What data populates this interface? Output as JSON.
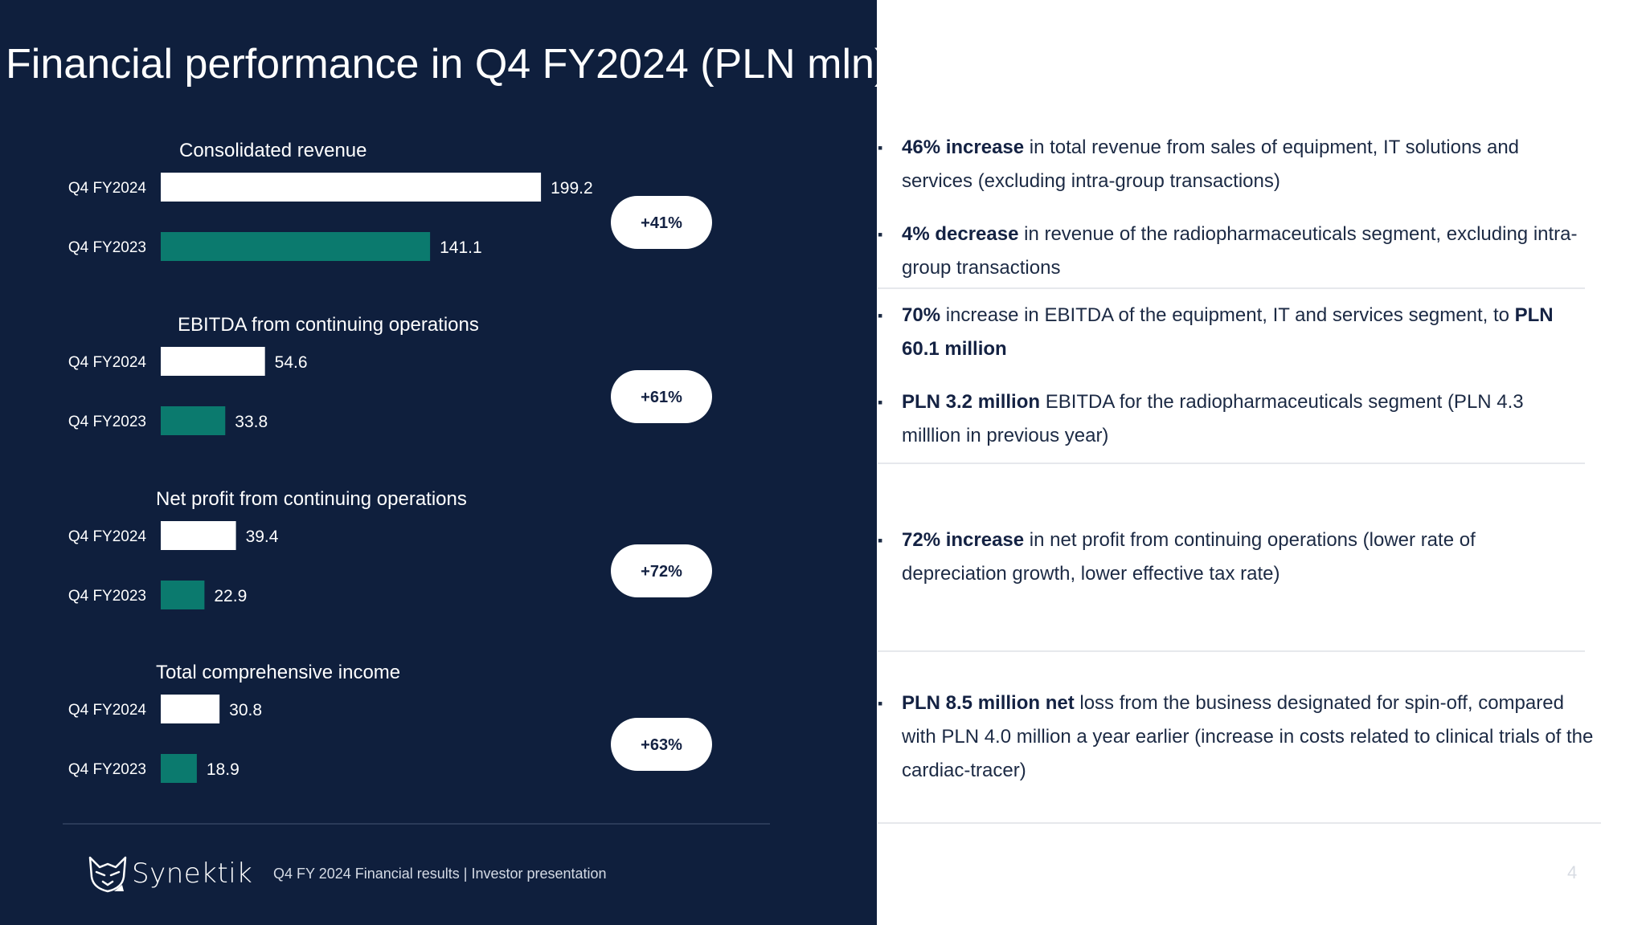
{
  "title": "Financial performance in Q4 FY2024 (PLN mln)",
  "colors": {
    "background": "#0f1f3d",
    "current_bar": "#ffffff",
    "previous_bar": "#0b7a6e",
    "pill": "#ffffff"
  },
  "chart_data": [
    {
      "type": "bar",
      "orientation": "horizontal",
      "title": "Consolidated revenue",
      "categories": [
        "Q4 FY2024",
        "Q4 FY2023"
      ],
      "values": [
        199.2,
        141.1
      ],
      "change": "+41%"
    },
    {
      "type": "bar",
      "orientation": "horizontal",
      "title": "EBITDA from continuing operations",
      "categories": [
        "Q4 FY2024",
        "Q4 FY2023"
      ],
      "values": [
        54.6,
        33.8
      ],
      "change": "+61%"
    },
    {
      "type": "bar",
      "orientation": "horizontal",
      "title": "Net profit from continuing operations",
      "categories": [
        "Q4 FY2024",
        "Q4 FY2023"
      ],
      "values": [
        39.4,
        22.9
      ],
      "change": "+72%"
    },
    {
      "type": "bar",
      "orientation": "horizontal",
      "title": "Total comprehensive income",
      "categories": [
        "Q4 FY2024",
        "Q4 FY2023"
      ],
      "values": [
        30.8,
        18.9
      ],
      "change": "+63%"
    }
  ],
  "sections": [
    {
      "bullets": [
        {
          "bold": "46% increase",
          "text": " in total revenue from sales of equipment, IT solutions and services (excluding intra-group transactions)"
        },
        {
          "bold": "4% decrease",
          "text": " in revenue of the radiopharmaceuticals segment, excluding intra-group transactions"
        }
      ]
    },
    {
      "bullets": [
        {
          "bold": "70%",
          "text": " increase in EBITDA of the equipment, IT and services segment, to ",
          "bold2": "PLN 60.1 million"
        },
        {
          "bold": "PLN 3.2 million",
          "text": " EBITDA for the radiopharmaceuticals segment (PLN 4.3 milllion in previous year)"
        }
      ]
    },
    {
      "bullets": [
        {
          "bold": "72% increase",
          "text": " in net profit from continuing operations (lower rate of depreciation growth, lower effective tax rate)"
        }
      ]
    },
    {
      "bullets": [
        {
          "bold": "PLN 8.5 million net",
          "text": " loss from the business designated for spin-off, compared with PLN 4.0 million a year earlier (increase in costs related to clinical trials of the cardiac-tracer)"
        }
      ]
    }
  ],
  "footer": {
    "logo_text": "Synektik",
    "logo_icon": "cat-head-logo-icon",
    "text": "Q4 FY 2024 Financial results |  Investor presentation",
    "page_number": "4"
  }
}
